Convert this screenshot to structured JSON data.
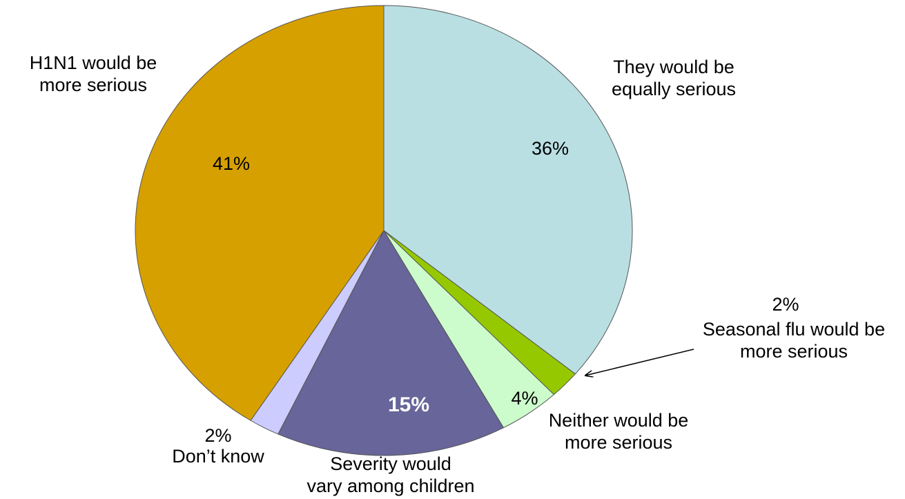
{
  "chart_data": {
    "type": "pie",
    "title": "",
    "slices": [
      {
        "label": "They would be equally serious",
        "label_lines": [
          "They would be",
          "equally serious"
        ],
        "value": 36,
        "value_label": "36%",
        "color": "#b9dfe2"
      },
      {
        "label": "Seasonal flu would be more serious",
        "label_lines": [
          "Seasonal flu would be",
          "more serious"
        ],
        "value": 2,
        "value_label": "2%",
        "color": "#96c800"
      },
      {
        "label": "Neither would be more serious",
        "label_lines": [
          "Neither would be",
          "more serious"
        ],
        "value": 4,
        "value_label": "4%",
        "color": "#ccfbcc"
      },
      {
        "label": "Severity would vary among children",
        "label_lines": [
          "Severity would",
          "vary among children"
        ],
        "value": 15,
        "value_label": "15%",
        "color": "#676599"
      },
      {
        "label": "Don’t know",
        "label_lines": [
          "Don’t know"
        ],
        "value": 2,
        "value_label": "2%",
        "color": "#ccccff"
      },
      {
        "label": "H1N1 would be more serious",
        "label_lines": [
          "H1N1 would be",
          "more serious"
        ],
        "value": 41,
        "value_label": "41%",
        "color": "#d6a000"
      }
    ]
  }
}
